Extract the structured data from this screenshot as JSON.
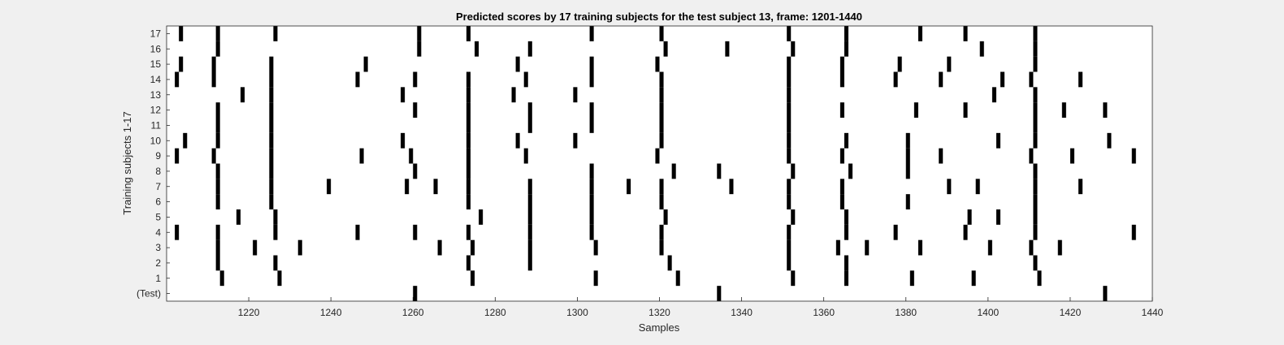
{
  "chart_data": {
    "type": "heatmap",
    "title": "Predicted scores by 17 training subjects for the test subject 13, frame: 1201-1440",
    "xlabel": "Samples",
    "ylabel": "Training subjects 1-17",
    "xlim": [
      1201,
      1440
    ],
    "x_ticks": [
      1220,
      1240,
      1260,
      1280,
      1300,
      1320,
      1340,
      1360,
      1380,
      1400,
      1420,
      1440
    ],
    "y_tick_labels": [
      "(Test)",
      "1",
      "2",
      "3",
      "4",
      "5",
      "6",
      "7",
      "8",
      "9",
      "10",
      "11",
      "12",
      "13",
      "14",
      "15",
      "16",
      "17"
    ],
    "background_color": "#ffffff",
    "mark_color": "#000000",
    "grid": false,
    "rows": [
      {
        "label": "17",
        "x": [
          1204,
          1213,
          1227,
          1262,
          1274,
          1304,
          1321,
          1352,
          1366,
          1384,
          1395,
          1412
        ]
      },
      {
        "label": "16",
        "x": [
          1213,
          1262,
          1276,
          1289,
          1322,
          1337,
          1353,
          1366,
          1399,
          1412
        ]
      },
      {
        "label": "15",
        "x": [
          1204,
          1212,
          1226,
          1249,
          1286,
          1304,
          1320,
          1352,
          1365,
          1379,
          1391,
          1412
        ]
      },
      {
        "label": "14",
        "x": [
          1203,
          1212,
          1226,
          1247,
          1261,
          1274,
          1288,
          1304,
          1321,
          1352,
          1365,
          1378,
          1389,
          1404,
          1411,
          1423
        ]
      },
      {
        "label": "13",
        "x": [
          1219,
          1226,
          1258,
          1274,
          1285,
          1300,
          1321,
          1352,
          1402,
          1412
        ]
      },
      {
        "label": "12",
        "x": [
          1213,
          1226,
          1261,
          1274,
          1289,
          1304,
          1321,
          1352,
          1365,
          1383,
          1395,
          1412,
          1419,
          1429
        ]
      },
      {
        "label": "11",
        "x": [
          1213,
          1226,
          1274,
          1289,
          1304,
          1321,
          1352,
          1412
        ]
      },
      {
        "label": "10",
        "x": [
          1205,
          1213,
          1226,
          1258,
          1274,
          1286,
          1300,
          1321,
          1352,
          1366,
          1381,
          1403,
          1412,
          1430
        ]
      },
      {
        "label": "9",
        "x": [
          1203,
          1212,
          1226,
          1248,
          1260,
          1274,
          1288,
          1320,
          1352,
          1365,
          1381,
          1389,
          1411,
          1421,
          1436
        ]
      },
      {
        "label": "8",
        "x": [
          1213,
          1226,
          1261,
          1274,
          1304,
          1324,
          1335,
          1353,
          1367,
          1381,
          1412
        ]
      },
      {
        "label": "7",
        "x": [
          1213,
          1226,
          1240,
          1259,
          1266,
          1274,
          1289,
          1304,
          1313,
          1321,
          1338,
          1352,
          1365,
          1391,
          1398,
          1412,
          1423
        ]
      },
      {
        "label": "6",
        "x": [
          1213,
          1226,
          1274,
          1289,
          1304,
          1321,
          1352,
          1365,
          1381,
          1412
        ]
      },
      {
        "label": "5",
        "x": [
          1218,
          1227,
          1277,
          1289,
          1304,
          1322,
          1353,
          1366,
          1396,
          1403,
          1412
        ]
      },
      {
        "label": "4",
        "x": [
          1203,
          1213,
          1227,
          1247,
          1261,
          1274,
          1289,
          1304,
          1321,
          1352,
          1366,
          1378,
          1395,
          1412,
          1436
        ]
      },
      {
        "label": "3",
        "x": [
          1213,
          1222,
          1233,
          1267,
          1275,
          1289,
          1305,
          1321,
          1352,
          1364,
          1371,
          1384,
          1401,
          1411,
          1418
        ]
      },
      {
        "label": "2",
        "x": [
          1213,
          1227,
          1274,
          1289,
          1323,
          1352,
          1366,
          1412
        ]
      },
      {
        "label": "1",
        "x": [
          1214,
          1228,
          1275,
          1305,
          1325,
          1353,
          1366,
          1382,
          1397,
          1413
        ]
      },
      {
        "label": "(Test)",
        "x": [
          1261,
          1335,
          1429
        ]
      }
    ]
  }
}
